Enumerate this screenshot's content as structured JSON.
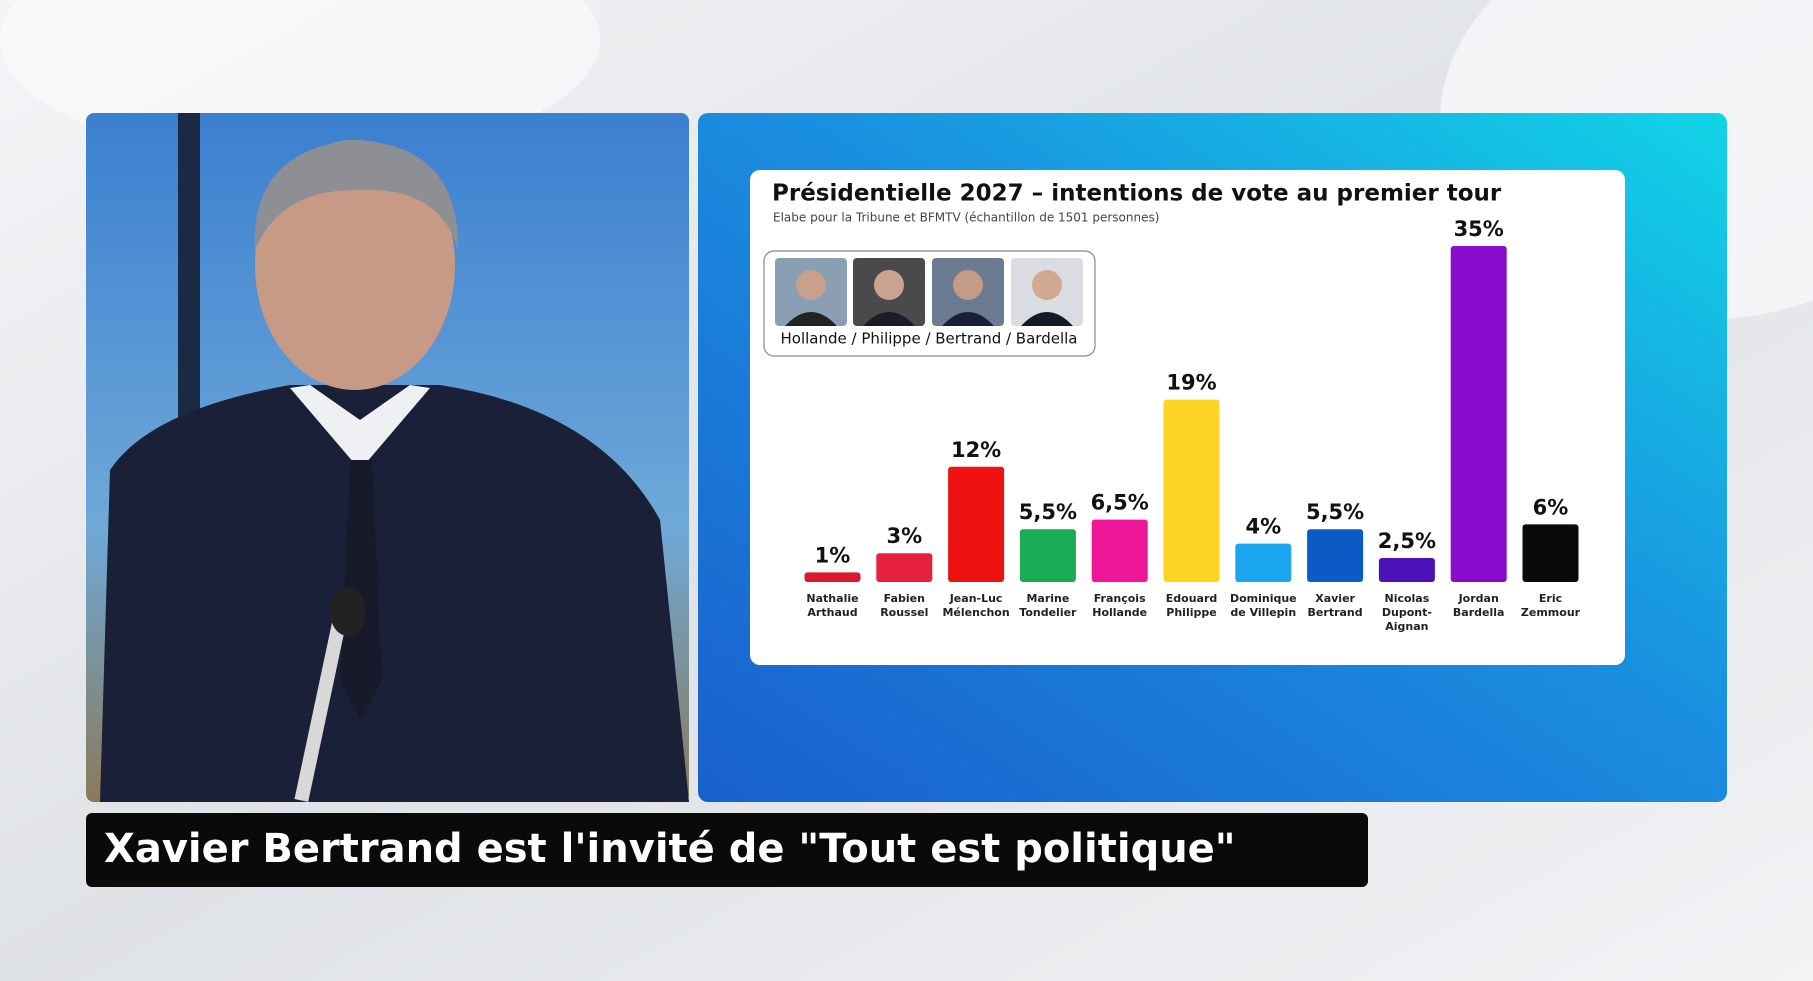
{
  "chart_data": {
    "type": "bar",
    "title": "Présidentielle 2027 – intentions de vote au premier tour",
    "subtitle": "Elabe pour la Tribune et  BFMTV (échantillon de 1501 personnes)",
    "categories": [
      "Nathalie Arthaud",
      "Fabien Roussel",
      "Jean-Luc Mélenchon",
      "Marine Tondelier",
      "François Hollande",
      "Edouard Philippe",
      "Dominique de Villepin",
      "Xavier Bertrand",
      "Nicolas Dupont-Aignan",
      "Jordan Bardella",
      "Eric Zemmour"
    ],
    "values": [
      1,
      3,
      12,
      5.5,
      6.5,
      19,
      4,
      5.5,
      2.5,
      35,
      6
    ],
    "value_labels": [
      "1%",
      "3%",
      "12%",
      "5,5%",
      "6,5%",
      "19%",
      "4%",
      "5,5%",
      "2,5%",
      "35%",
      "6%"
    ],
    "colors": [
      "#d91a2e",
      "#e8203f",
      "#ee1212",
      "#1aab55",
      "#ee1599",
      "#fdd424",
      "#1ba6ef",
      "#0b5ac6",
      "#4b12b8",
      "#8a0bcc",
      "#0a0a0a"
    ]
  },
  "legend_box": {
    "label": "Hollande / Philippe / Bertrand / Bardella"
  },
  "caption": "Xavier Bertrand est l'invité de \"Tout est politique\""
}
